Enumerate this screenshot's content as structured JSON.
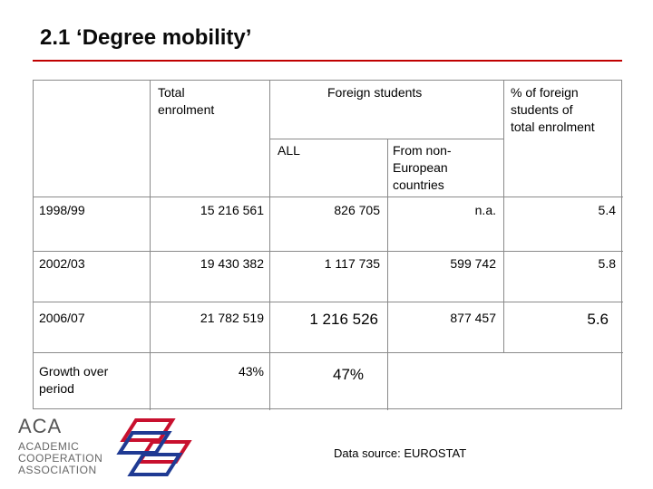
{
  "title": "2.1 ‘Degree mobility’",
  "headers": {
    "total": "Total\nenrolment",
    "foreign": "Foreign students",
    "pct": "% of foreign\nstudents of\ntotal enrolment",
    "all": "ALL",
    "non_eu": "From non-\nEuropean\ncountries"
  },
  "rows": [
    {
      "label": "1998/99",
      "total": "15 216 561",
      "all": "826 705",
      "non_eu": "n.a.",
      "pct": "5.4"
    },
    {
      "label": "2002/03",
      "total": "19 430 382",
      "all": "1 117 735",
      "non_eu": "599 742",
      "pct": "5.8"
    },
    {
      "label": "2006/07",
      "total": "21 782 519",
      "all": "1 216 526",
      "non_eu": "877 457",
      "pct": "5.6"
    }
  ],
  "growth": {
    "label": "Growth over\nperiod",
    "total": "43%",
    "all": "47%"
  },
  "source": "Data source: EUROSTAT",
  "logo": {
    "acronym": "ACA",
    "name": "ACADEMIC\nCOOPERATION\nASSOCIATION"
  },
  "colors": {
    "accent_rule": "#c00000",
    "logo_red": "#c8102e",
    "logo_blue": "#1f3a93"
  }
}
